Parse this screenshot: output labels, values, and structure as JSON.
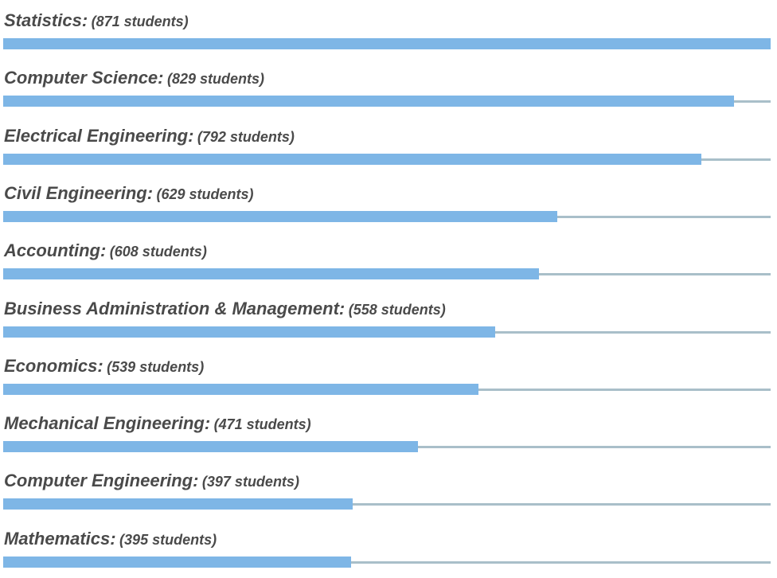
{
  "chart_data": {
    "type": "bar",
    "orientation": "horizontal",
    "title": "",
    "xlabel": "",
    "ylabel": "",
    "xlim": [
      0,
      871
    ],
    "categories": [
      "Statistics",
      "Computer Science",
      "Electrical Engineering",
      "Civil Engineering",
      "Accounting",
      "Business Administration & Management",
      "Economics",
      "Mechanical Engineering",
      "Computer Engineering",
      "Mathematics"
    ],
    "values": [
      871,
      829,
      792,
      629,
      608,
      558,
      539,
      471,
      397,
      395
    ],
    "value_labels": [
      "(871 students)",
      "(829 students)",
      "(792 students)",
      "(629 students)",
      "(608 students)",
      "(558 students)",
      "(539 students)",
      "(471 students)",
      "(397 students)",
      "(395 students)"
    ],
    "label_suffix": ":",
    "colors": {
      "bar": "#7eb6e6",
      "track": "#a9bfc9",
      "text": "#4a4a4a"
    }
  }
}
